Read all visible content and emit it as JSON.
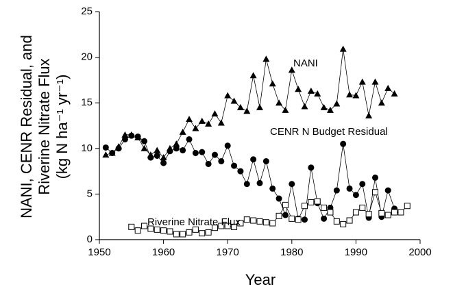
{
  "chart_data": {
    "type": "line",
    "xlabel": "Year",
    "ylabel": [
      "NANI, CENR Residual, and",
      "Riverine Nitrate Flux",
      "(kg N ha⁻¹ yr⁻¹)"
    ],
    "xlim": [
      1950,
      2000
    ],
    "xticks": [
      1950,
      1960,
      1970,
      1980,
      1990,
      2000
    ],
    "ylim": [
      0,
      25
    ],
    "yticks": [
      0,
      5,
      10,
      15,
      20,
      25
    ],
    "grid": false,
    "series": [
      {
        "name": "NANI",
        "color": "#000000",
        "marker": "triangle",
        "x": [
          1951,
          1952,
          1953,
          1954,
          1955,
          1956,
          1957,
          1958,
          1959,
          1960,
          1961,
          1962,
          1963,
          1964,
          1965,
          1966,
          1967,
          1968,
          1969,
          1970,
          1971,
          1972,
          1973,
          1974,
          1975,
          1976,
          1977,
          1978,
          1979,
          1980,
          1981,
          1982,
          1983,
          1984,
          1985,
          1986,
          1987,
          1988,
          1989,
          1990,
          1991,
          1992,
          1993,
          1994,
          1995,
          1996
        ],
        "values": [
          9.3,
          9.5,
          10.2,
          11.5,
          11.5,
          11.2,
          10.0,
          9.3,
          9.8,
          9.0,
          10.0,
          10.5,
          11.8,
          13.2,
          12.2,
          13.0,
          12.7,
          13.8,
          12.8,
          15.8,
          15.2,
          14.5,
          14.1,
          18.0,
          14.5,
          19.8,
          17.1,
          15.0,
          14.2,
          18.6,
          16.5,
          14.6,
          16.3,
          16.0,
          14.5,
          14.2,
          14.9,
          20.9,
          15.9,
          15.8,
          17.3,
          13.6,
          17.3,
          15.0,
          16.6,
          16.0
        ]
      },
      {
        "name": "CENR N Budget Residual",
        "color": "#000000",
        "marker": "circle",
        "x": [
          1951,
          1952,
          1953,
          1954,
          1955,
          1956,
          1957,
          1958,
          1959,
          1960,
          1961,
          1962,
          1963,
          1964,
          1965,
          1966,
          1967,
          1968,
          1969,
          1970,
          1971,
          1972,
          1973,
          1974,
          1975,
          1976,
          1977,
          1978,
          1979,
          1980,
          1981,
          1982,
          1983,
          1984,
          1985,
          1986,
          1987,
          1988,
          1989,
          1990,
          1991,
          1992,
          1993,
          1994,
          1995,
          1996
        ],
        "values": [
          10.1,
          9.5,
          10.0,
          11.0,
          11.4,
          11.3,
          10.8,
          9.0,
          9.2,
          8.4,
          9.7,
          10.0,
          9.8,
          11.0,
          9.5,
          9.6,
          8.3,
          9.3,
          8.6,
          10.3,
          8.1,
          7.5,
          6.1,
          8.8,
          6.2,
          8.6,
          5.6,
          4.5,
          2.7,
          6.1,
          2.3,
          2.2,
          7.9,
          4.0,
          2.3,
          3.5,
          5.4,
          10.5,
          5.6,
          4.9,
          6.1,
          2.4,
          6.8,
          2.5,
          5.4,
          3.4
        ]
      },
      {
        "name": "Riverine Nitrate Flux",
        "color": "#000000",
        "marker": "square-open",
        "x": [
          1955,
          1956,
          1957,
          1958,
          1959,
          1960,
          1961,
          1962,
          1963,
          1964,
          1965,
          1966,
          1967,
          1968,
          1969,
          1970,
          1971,
          1972,
          1973,
          1974,
          1975,
          1976,
          1977,
          1978,
          1979,
          1980,
          1981,
          1982,
          1983,
          1984,
          1985,
          1986,
          1987,
          1988,
          1989,
          1990,
          1991,
          1992,
          1993,
          1994,
          1995,
          1996,
          1997,
          1998
        ],
        "values": [
          1.4,
          1.0,
          1.5,
          1.2,
          1.1,
          1.0,
          0.9,
          0.6,
          0.6,
          0.8,
          1.1,
          0.7,
          0.8,
          1.3,
          1.5,
          1.5,
          1.4,
          1.8,
          2.2,
          2.1,
          2.0,
          1.9,
          1.8,
          2.6,
          3.8,
          2.3,
          2.2,
          3.7,
          4.1,
          4.2,
          3.5,
          3.0,
          2.0,
          1.7,
          2.1,
          3.0,
          3.5,
          2.8,
          5.2,
          2.9,
          2.7,
          3.0,
          3.0,
          3.7
        ]
      }
    ]
  }
}
